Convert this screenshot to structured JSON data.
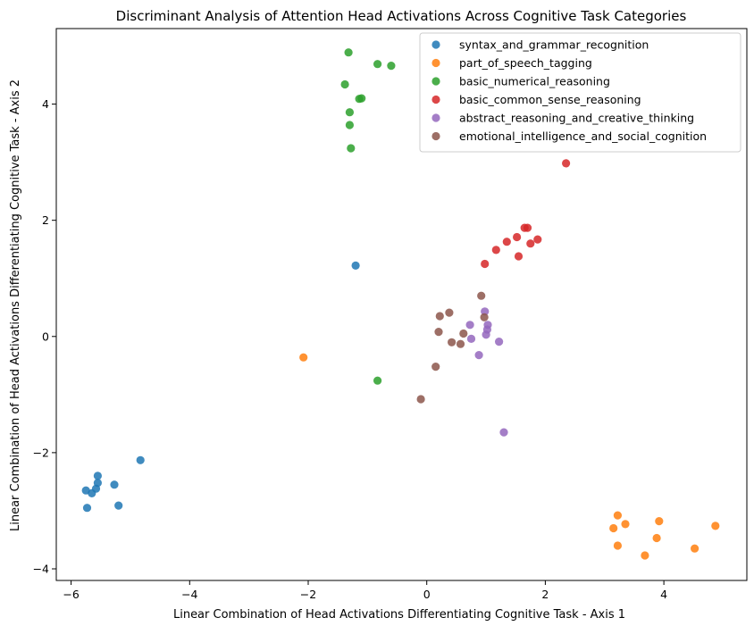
{
  "chart_data": {
    "type": "scatter",
    "title": "Discriminant Analysis of Attention Head Activations Across Cognitive Task Categories",
    "xlabel": "Linear Combination of Head Activations Differentiating Cognitive Task - Axis 1",
    "ylabel": "Linear Combination of Head Activations Differentiating Cognitive Task - Axis 2",
    "xlim": [
      -6.25,
      5.4
    ],
    "ylim": [
      -4.2,
      5.3
    ],
    "x_ticks": [
      -6,
      -4,
      -2,
      0,
      2,
      4
    ],
    "y_ticks": [
      -4,
      -2,
      0,
      2,
      4
    ],
    "x_tick_labels": [
      "−6",
      "−4",
      "−2",
      "0",
      "2",
      "4"
    ],
    "y_tick_labels": [
      "−4",
      "−2",
      "0",
      "2",
      "4"
    ],
    "grid": false,
    "legend_position": "top-right",
    "series": [
      {
        "name": "syntax_and_grammar_recognition",
        "color": "#1f77b4",
        "points": [
          [
            -5.75,
            -2.65
          ],
          [
            -5.73,
            -2.95
          ],
          [
            -5.65,
            -2.7
          ],
          [
            -5.58,
            -2.62
          ],
          [
            -5.55,
            -2.52
          ],
          [
            -5.55,
            -2.4
          ],
          [
            -5.27,
            -2.55
          ],
          [
            -5.2,
            -2.91
          ],
          [
            -4.83,
            -2.13
          ],
          [
            -1.2,
            1.22
          ]
        ]
      },
      {
        "name": "part_of_speech_tagging",
        "color": "#ff7f0e",
        "points": [
          [
            -2.08,
            -0.36
          ],
          [
            3.15,
            -3.3
          ],
          [
            3.22,
            -3.08
          ],
          [
            3.22,
            -3.6
          ],
          [
            3.35,
            -3.23
          ],
          [
            3.68,
            -3.77
          ],
          [
            3.88,
            -3.47
          ],
          [
            3.92,
            -3.18
          ],
          [
            4.52,
            -3.65
          ],
          [
            4.87,
            -3.26
          ]
        ]
      },
      {
        "name": "basic_numerical_reasoning",
        "color": "#2ca02c",
        "points": [
          [
            -1.38,
            4.34
          ],
          [
            -1.32,
            4.89
          ],
          [
            -1.3,
            3.86
          ],
          [
            -1.3,
            3.64
          ],
          [
            -1.28,
            3.24
          ],
          [
            -1.14,
            4.09
          ],
          [
            -1.1,
            4.1
          ],
          [
            -0.83,
            4.69
          ],
          [
            -0.6,
            4.66
          ],
          [
            -0.83,
            -0.76
          ]
        ]
      },
      {
        "name": "basic_common_sense_reasoning",
        "color": "#d62728",
        "points": [
          [
            0.98,
            1.25
          ],
          [
            1.17,
            1.49
          ],
          [
            1.35,
            1.63
          ],
          [
            1.52,
            1.71
          ],
          [
            1.55,
            1.38
          ],
          [
            1.65,
            1.87
          ],
          [
            1.7,
            1.87
          ],
          [
            1.75,
            1.6
          ],
          [
            1.87,
            1.67
          ],
          [
            2.35,
            2.98
          ]
        ]
      },
      {
        "name": "abstract_reasoning_and_creative_thinking",
        "color": "#9467bd",
        "points": [
          [
            0.73,
            0.2
          ],
          [
            0.75,
            -0.04
          ],
          [
            0.88,
            -0.32
          ],
          [
            0.98,
            0.43
          ],
          [
            1.0,
            0.03
          ],
          [
            1.02,
            0.12
          ],
          [
            1.03,
            0.2
          ],
          [
            1.22,
            -0.09
          ],
          [
            1.3,
            -1.65
          ]
        ]
      },
      {
        "name": "emotional_intelligence_and_social_cognition",
        "color": "#8c564b",
        "points": [
          [
            -0.1,
            -1.08
          ],
          [
            0.15,
            -0.52
          ],
          [
            0.2,
            0.08
          ],
          [
            0.22,
            0.35
          ],
          [
            0.38,
            0.41
          ],
          [
            0.42,
            -0.1
          ],
          [
            0.57,
            -0.13
          ],
          [
            0.62,
            0.05
          ],
          [
            0.92,
            0.7
          ],
          [
            0.97,
            0.33
          ]
        ]
      }
    ]
  }
}
